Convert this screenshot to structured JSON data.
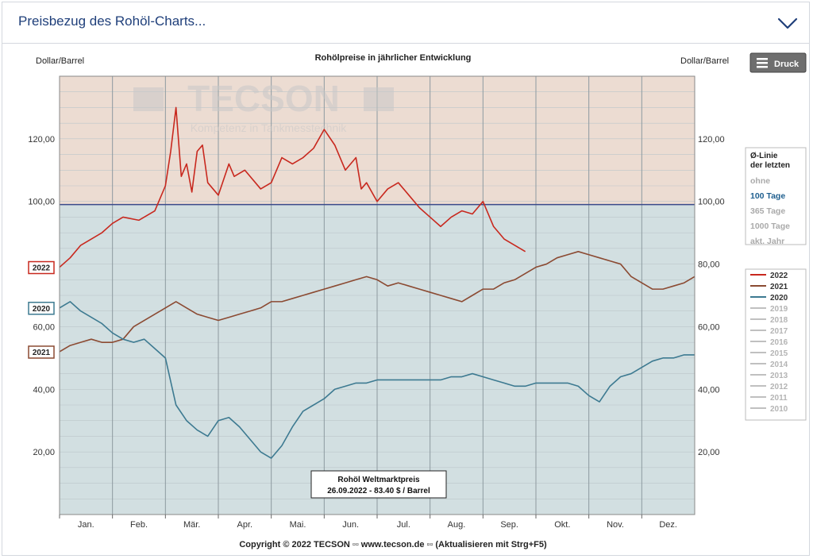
{
  "header": {
    "title": "Preisbezug des Rohöl-Charts...",
    "toggle_icon": "chevron-down-icon"
  },
  "chart_data": {
    "type": "line",
    "title": "Rohölpreise in jährlicher Entwicklung",
    "ylabel_left": "Dollar/Barrel",
    "ylabel_right": "Dollar/Barrel",
    "ylim": [
      0,
      140
    ],
    "yticks": [
      "20,00",
      "40,00",
      "60,00",
      "80,00",
      "100,00",
      "120,00"
    ],
    "yticks_right": [
      "20,00",
      "40,00",
      "60,00",
      "80,00",
      "100,00",
      "120,00"
    ],
    "months": [
      "Jan.",
      "Feb.",
      "Mär.",
      "Apr.",
      "Mai.",
      "Jun.",
      "Jul.",
      "Aug.",
      "Sep.",
      "Okt.",
      "Nov.",
      "Dez."
    ],
    "reference_line": 99,
    "watermark": {
      "name": "TECSON",
      "tagline": "Kompetenz in Tankmesstechnik"
    },
    "series": [
      {
        "name": "2022",
        "color": "#c8281e",
        "label": "2022",
        "x": [
          0,
          0.2,
          0.4,
          0.6,
          0.8,
          1.0,
          1.2,
          1.5,
          1.8,
          2.0,
          2.1,
          2.2,
          2.3,
          2.4,
          2.5,
          2.6,
          2.7,
          2.8,
          2.9,
          3.0,
          3.2,
          3.3,
          3.5,
          3.8,
          4.0,
          4.2,
          4.4,
          4.6,
          4.8,
          5.0,
          5.2,
          5.4,
          5.6,
          5.7,
          5.8,
          6.0,
          6.2,
          6.4,
          6.6,
          6.8,
          7.0,
          7.2,
          7.4,
          7.6,
          7.8,
          8.0,
          8.2,
          8.4,
          8.6,
          8.8
        ],
        "values": [
          79,
          82,
          86,
          88,
          90,
          93,
          95,
          94,
          97,
          105,
          116,
          130,
          108,
          112,
          103,
          116,
          118,
          106,
          104,
          102,
          112,
          108,
          110,
          104,
          106,
          114,
          112,
          114,
          117,
          123,
          118,
          110,
          114,
          104,
          106,
          100,
          104,
          106,
          102,
          98,
          95,
          92,
          95,
          97,
          96,
          100,
          92,
          88,
          86,
          84
        ]
      },
      {
        "name": "2021",
        "color": "#8b4a32",
        "label": "2021",
        "x": [
          0,
          0.2,
          0.4,
          0.6,
          0.8,
          1.0,
          1.2,
          1.4,
          1.6,
          1.8,
          2.0,
          2.2,
          2.4,
          2.6,
          2.8,
          3.0,
          3.2,
          3.4,
          3.6,
          3.8,
          4.0,
          4.2,
          4.4,
          4.6,
          4.8,
          5.0,
          5.2,
          5.4,
          5.6,
          5.8,
          6.0,
          6.2,
          6.4,
          6.6,
          6.8,
          7.0,
          7.2,
          7.4,
          7.6,
          7.8,
          8.0,
          8.2,
          8.4,
          8.6,
          8.8,
          9.0,
          9.2,
          9.4,
          9.6,
          9.8,
          10.0,
          10.2,
          10.4,
          10.6,
          10.8,
          11.0,
          11.2,
          11.4,
          11.6,
          11.8,
          12.0
        ],
        "values": [
          52,
          54,
          55,
          56,
          55,
          55,
          56,
          60,
          62,
          64,
          66,
          68,
          66,
          64,
          63,
          62,
          63,
          64,
          65,
          66,
          68,
          68,
          69,
          70,
          71,
          72,
          73,
          74,
          75,
          76,
          75,
          73,
          74,
          73,
          72,
          71,
          70,
          69,
          68,
          70,
          72,
          72,
          74,
          75,
          77,
          79,
          80,
          82,
          83,
          84,
          83,
          82,
          81,
          80,
          76,
          74,
          72,
          72,
          73,
          74,
          76
        ]
      },
      {
        "name": "2020",
        "color": "#3d7a91",
        "label": "2020",
        "x": [
          0,
          0.2,
          0.4,
          0.6,
          0.8,
          1.0,
          1.2,
          1.4,
          1.6,
          1.8,
          2.0,
          2.2,
          2.4,
          2.6,
          2.8,
          3.0,
          3.2,
          3.4,
          3.6,
          3.8,
          4.0,
          4.2,
          4.4,
          4.6,
          4.8,
          5.0,
          5.2,
          5.4,
          5.6,
          5.8,
          6.0,
          6.2,
          6.4,
          6.6,
          6.8,
          7.0,
          7.2,
          7.4,
          7.6,
          7.8,
          8.0,
          8.2,
          8.4,
          8.6,
          8.8,
          9.0,
          9.2,
          9.4,
          9.6,
          9.8,
          10.0,
          10.2,
          10.4,
          10.6,
          10.8,
          11.0,
          11.2,
          11.4,
          11.6,
          11.8,
          12.0
        ],
        "values": [
          66,
          68,
          65,
          63,
          61,
          58,
          56,
          55,
          56,
          53,
          50,
          35,
          30,
          27,
          25,
          30,
          31,
          28,
          24,
          20,
          18,
          22,
          28,
          33,
          35,
          37,
          40,
          41,
          42,
          42,
          43,
          43,
          43,
          43,
          43,
          43,
          43,
          44,
          44,
          45,
          44,
          43,
          42,
          41,
          41,
          42,
          42,
          42,
          42,
          41,
          38,
          36,
          41,
          44,
          45,
          47,
          49,
          50,
          50,
          51,
          51
        ]
      },
      {
        "name": "2019",
        "color": "#c0c0c0",
        "label": "2019"
      },
      {
        "name": "2018",
        "color": "#c0c0c0",
        "label": "2018"
      },
      {
        "name": "2017",
        "color": "#c0c0c0",
        "label": "2017"
      },
      {
        "name": "2016",
        "color": "#c0c0c0",
        "label": "2016"
      },
      {
        "name": "2015",
        "color": "#c0c0c0",
        "label": "2015"
      },
      {
        "name": "2014",
        "color": "#c0c0c0",
        "label": "2014"
      },
      {
        "name": "2013",
        "color": "#c0c0c0",
        "label": "2013"
      },
      {
        "name": "2012",
        "color": "#c0c0c0",
        "label": "2012"
      },
      {
        "name": "2011",
        "color": "#c0c0c0",
        "label": "2011"
      },
      {
        "name": "2010",
        "color": "#c0c0c0",
        "label": "2010"
      }
    ],
    "avg_options": {
      "title_line1": "Ø-Linie",
      "title_line2": "der letzten",
      "items": [
        {
          "label": "ohne",
          "active": false
        },
        {
          "label": "100 Tage",
          "active": true
        },
        {
          "label": "365 Tage",
          "active": false
        },
        {
          "label": "1000 Tage",
          "active": false
        },
        {
          "label": "akt. Jahr",
          "active": false
        }
      ]
    },
    "tooltip": {
      "line1": "Rohöl Weltmarktpreis",
      "line2": "26.09.2022 - 83.40 $ / Barrel"
    },
    "copyright": "Copyright © 2022 TECSON ▫▫ www.tecson.de ▫▫ (Aktualisieren mit Strg+F5)",
    "print_button": "Druck"
  }
}
